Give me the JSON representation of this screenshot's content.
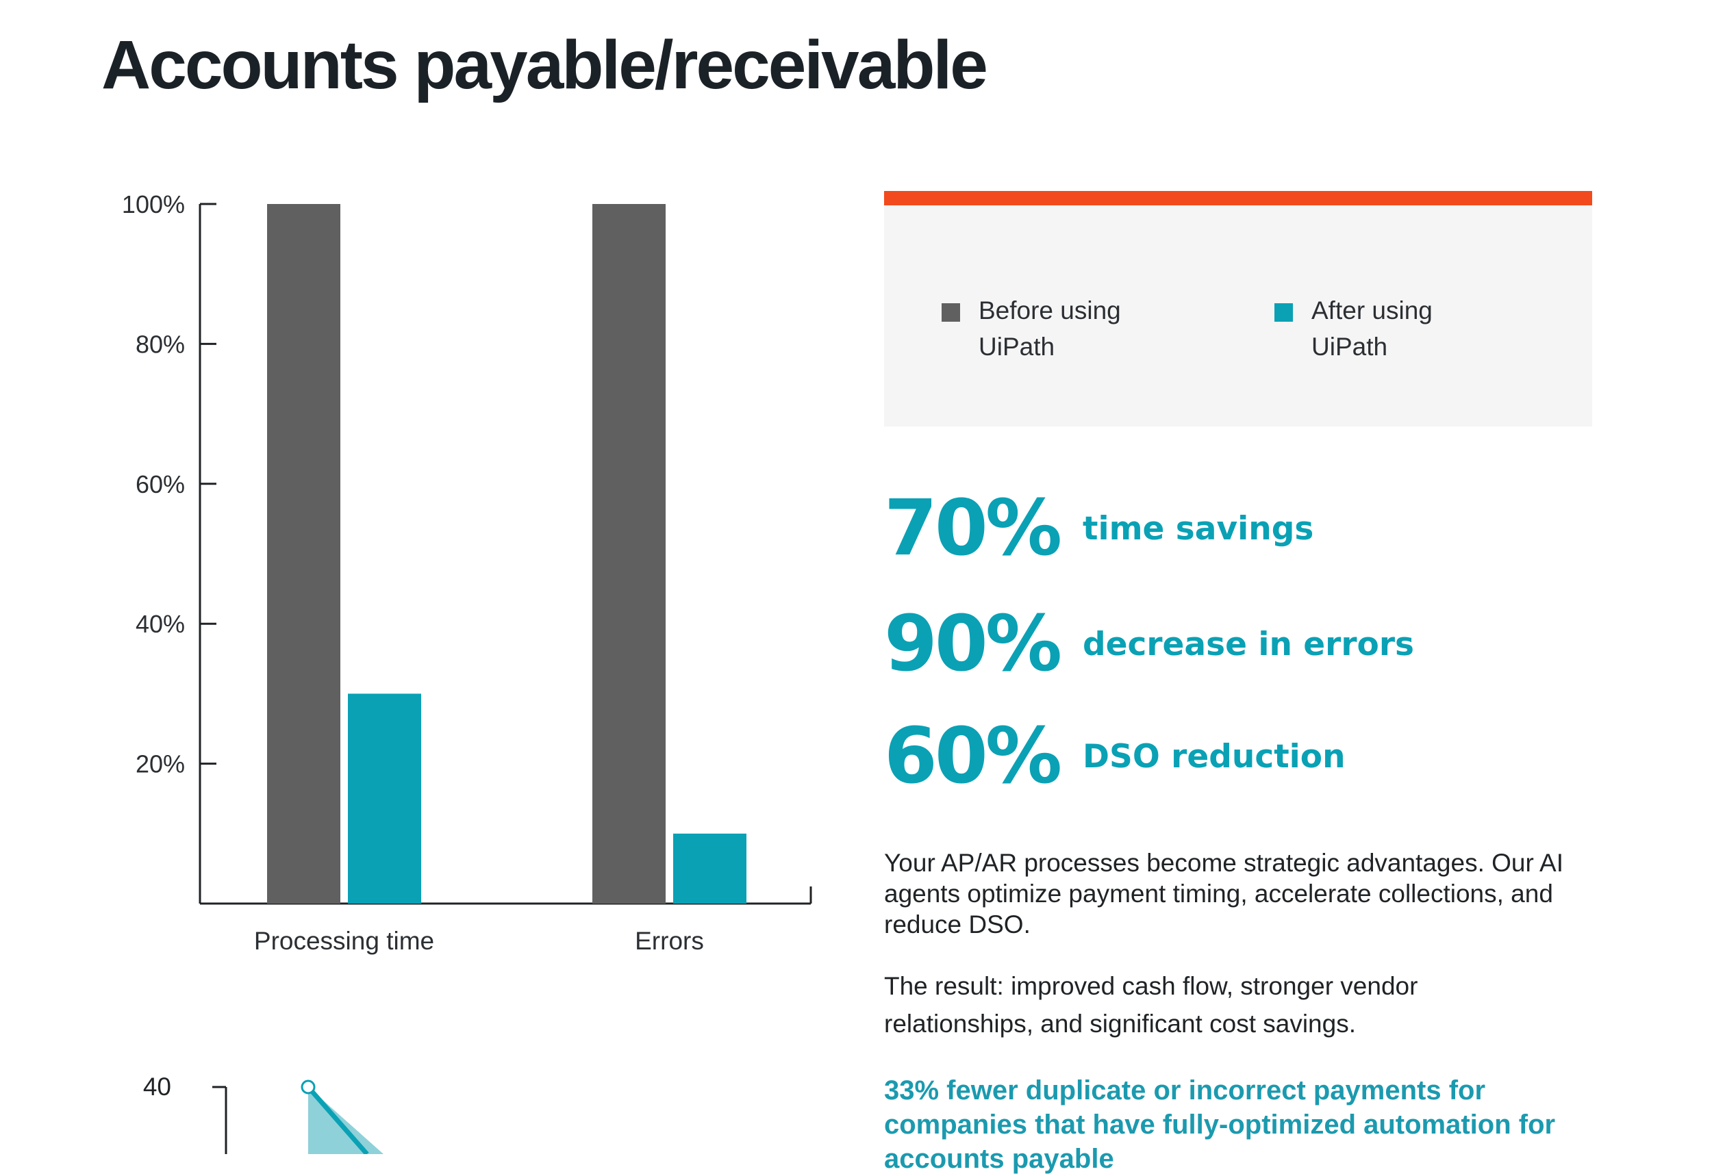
{
  "page": {
    "title": "Accounts payable/receivable"
  },
  "colors": {
    "before": "#606060",
    "after": "#0aa1b5",
    "accent": "#f24a1d",
    "highlight": "#1b9aaf",
    "light_teal": "#8fd1d9"
  },
  "chart_data": [
    {
      "type": "bar",
      "categories": [
        "Processing time",
        "Errors"
      ],
      "series": [
        {
          "name": "Before using UiPath",
          "values": [
            100,
            100
          ]
        },
        {
          "name": "After using UiPath",
          "values": [
            30,
            10
          ]
        }
      ],
      "y_ticks": [
        "100%",
        "80%",
        "60%",
        "40%",
        "20%"
      ],
      "ylim": [
        0,
        100
      ],
      "legend": "top-right panel"
    },
    {
      "type": "area",
      "y_ticks": [
        "40"
      ],
      "x": [
        0
      ],
      "values": [
        40
      ]
    }
  ],
  "legend": {
    "items": [
      {
        "label": "Before using UiPath",
        "color": "#606060"
      },
      {
        "label": "After using UiPath",
        "color": "#0aa1b5"
      }
    ]
  },
  "stats": [
    {
      "value": "70%",
      "label": "time savings"
    },
    {
      "value": "90%",
      "label": "decrease in errors"
    },
    {
      "value": "60%",
      "label": "DSO reduction"
    }
  ],
  "body": {
    "paragraph1": "Your AP/AR processes become strategic advantages. Our AI agents optimize payment timing, accelerate collections, and reduce DSO.",
    "paragraph2": "The result: improved cash flow, stronger vendor relationships, and significant cost savings.",
    "highlight": "33% fewer duplicate or incorrect payments for companies that have fully-optimized automation for accounts payable"
  }
}
